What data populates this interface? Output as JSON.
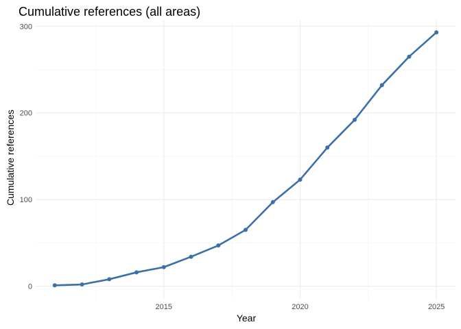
{
  "chart_data": {
    "type": "line",
    "title": "Cumulative references (all areas)",
    "xlabel": "Year",
    "ylabel": "Cumulative references",
    "x": [
      2011,
      2012,
      2013,
      2014,
      2015,
      2016,
      2017,
      2018,
      2019,
      2020,
      2021,
      2022,
      2023,
      2024,
      2025
    ],
    "series": [
      {
        "values": [
          1,
          2,
          8,
          16,
          22,
          34,
          47,
          65,
          97,
          123,
          160,
          192,
          232,
          265,
          293
        ]
      }
    ],
    "xlim": [
      2010.3,
      2025.7
    ],
    "ylim": [
      -14.6,
      306.6
    ],
    "x_ticks": [
      2015,
      2020,
      2025
    ],
    "x_tick_labels": [
      "2015",
      "2020",
      "2025"
    ],
    "x_minor_ticks": [
      2012.5,
      2017.5,
      2022.5
    ],
    "y_ticks": [
      0,
      100,
      200,
      300
    ],
    "y_tick_labels": [
      "0",
      "100",
      "200",
      "300"
    ],
    "y_minor_ticks": [
      50,
      150,
      250
    ],
    "grid": true,
    "legend": "none",
    "line_color": "#3b6fa8"
  }
}
